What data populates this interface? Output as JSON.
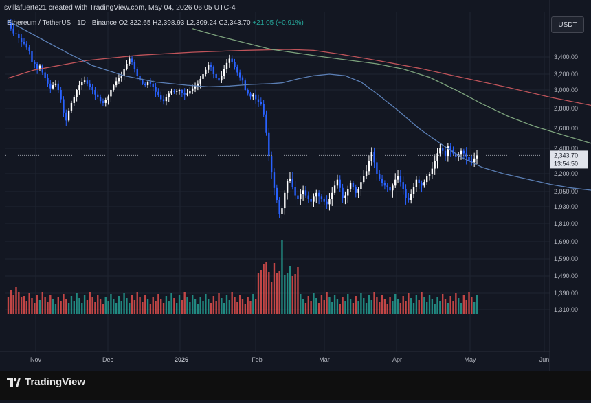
{
  "watermark_line": "svillafuerte21 created with TradingView.com, May 04, 2026 06:05 UTC-4",
  "legend": {
    "symbol": "Ethereum / TetherUS · 1D · Binance",
    "open": "O2,322.65",
    "high": "H2,398.93",
    "low": "L2,309.24",
    "close": "C2,343.70",
    "change": "+21.05 (+0.91%)"
  },
  "currency_button": "USDT",
  "brand": "TradingView",
  "colors": {
    "background": "#131722",
    "up": "#ffffff",
    "down": "#2962ff",
    "vol_up": "#26a69a",
    "vol_down": "#ef5350",
    "ma_fast": "#5b7fb5",
    "ma_mid": "#7da37d",
    "ma_slow": "#c0545a"
  },
  "chart_data": {
    "type": "candlestick",
    "price_axis_ticks": [
      "3,400.00",
      "3,200.00",
      "3,000.00",
      "2,800.00",
      "2,600.00",
      "2,400.00",
      "2,200.00",
      "2,050.00",
      "1,930.00",
      "1,810.00",
      "1,690.00",
      "1,590.00",
      "1,490.00",
      "1,390.00",
      "1,310.00"
    ],
    "time_axis_labels": [
      "Nov",
      "Dec",
      "2026",
      "Feb",
      "Mar",
      "Apr",
      "May",
      "Jun"
    ],
    "last_price_label": "2,343.70",
    "countdown_label": "13:54:50",
    "closes": [
      3760,
      3700,
      3650,
      3640,
      3600,
      3560,
      3540,
      3500,
      3460,
      3340,
      3320,
      3260,
      3300,
      3220,
      3150,
      3080,
      3020,
      3060,
      3080,
      3000,
      2900,
      2760,
      2680,
      2780,
      2860,
      2920,
      3000,
      3060,
      3100,
      3120,
      3080,
      3040,
      3000,
      2950,
      2920,
      2880,
      2860,
      2890,
      2930,
      3000,
      3060,
      3110,
      3150,
      3180,
      3260,
      3320,
      3380,
      3340,
      3260,
      3180,
      3120,
      3080,
      3060,
      3100,
      3080,
      3040,
      2980,
      2940,
      2900,
      2880,
      2920,
      2960,
      2990,
      2980,
      2990,
      3000,
      2970,
      2950,
      2960,
      2990,
      3020,
      3050,
      3080,
      3140,
      3200,
      3250,
      3310,
      3280,
      3200,
      3150,
      3120,
      3180,
      3260,
      3330,
      3380,
      3340,
      3280,
      3220,
      3160,
      3120,
      3000,
      2960,
      2930,
      2950,
      2900,
      2870,
      2850,
      2740,
      2560,
      2340,
      2210,
      2080,
      1980,
      1880,
      1920,
      2040,
      2140,
      2160,
      2090,
      2020,
      1990,
      2030,
      2060,
      2020,
      1990,
      1970,
      2010,
      2040,
      2010,
      1990,
      1970,
      1950,
      1990,
      2040,
      2100,
      2150,
      2080,
      2000,
      2020,
      2070,
      2120,
      2090,
      2040,
      2070,
      2130,
      2180,
      2220,
      2300,
      2370,
      2290,
      2200,
      2160,
      2120,
      2100,
      2090,
      2060,
      2100,
      2150,
      2180,
      2130,
      2070,
      2000,
      1980,
      2030,
      2090,
      2150,
      2120,
      2100,
      2130,
      2180,
      2200,
      2240,
      2300,
      2360,
      2400,
      2380,
      2340,
      2420,
      2390,
      2360,
      2330,
      2350,
      2380,
      2360,
      2330,
      2300,
      2290,
      2320,
      2343.7
    ],
    "moving_averages": {
      "ma_fast": [
        [
          3780,
          0
        ],
        [
          3720,
          4
        ],
        [
          3600,
          12
        ],
        [
          3450,
          22
        ],
        [
          3300,
          32
        ],
        [
          3180,
          44
        ],
        [
          3100,
          56
        ],
        [
          3060,
          68
        ],
        [
          3040,
          76
        ],
        [
          3050,
          84
        ],
        [
          3070,
          92
        ],
        [
          3080,
          100
        ],
        [
          3090,
          104
        ],
        [
          3140,
          110
        ],
        [
          3180,
          116
        ],
        [
          3200,
          122
        ],
        [
          3180,
          128
        ],
        [
          3100,
          134
        ],
        [
          2960,
          140
        ],
        [
          2780,
          148
        ],
        [
          2600,
          156
        ],
        [
          2450,
          164
        ],
        [
          2330,
          172
        ],
        [
          2250,
          180
        ],
        [
          2200,
          188
        ],
        [
          2160,
          196
        ],
        [
          2110,
          206
        ],
        [
          2080,
          214
        ],
        [
          2060,
          222
        ],
        [
          2080,
          230
        ],
        [
          2110,
          238
        ],
        [
          2140,
          246
        ],
        [
          2170,
          254
        ],
        [
          2200,
          262
        ],
        [
          2220,
          268
        ]
      ],
      "ma_mid": [
        [
          3700,
          70
        ],
        [
          3620,
          80
        ],
        [
          3550,
          90
        ],
        [
          3480,
          100
        ],
        [
          3440,
          110
        ],
        [
          3400,
          120
        ],
        [
          3360,
          130
        ],
        [
          3320,
          140
        ],
        [
          3260,
          150
        ],
        [
          3160,
          160
        ],
        [
          3000,
          170
        ],
        [
          2850,
          180
        ],
        [
          2720,
          190
        ],
        [
          2620,
          200
        ],
        [
          2540,
          210
        ],
        [
          2460,
          220
        ],
        [
          2390,
          230
        ],
        [
          2330,
          240
        ],
        [
          2290,
          250
        ],
        [
          2250,
          260
        ],
        [
          2200,
          268
        ]
      ],
      "ma_slow": [
        [
          3150,
          0
        ],
        [
          3250,
          10
        ],
        [
          3360,
          30
        ],
        [
          3420,
          50
        ],
        [
          3450,
          70
        ],
        [
          3470,
          90
        ],
        [
          3480,
          106
        ],
        [
          3470,
          116
        ],
        [
          3430,
          126
        ],
        [
          3360,
          140
        ],
        [
          3270,
          156
        ],
        [
          3160,
          172
        ],
        [
          3030,
          190
        ],
        [
          2920,
          206
        ],
        [
          2830,
          222
        ],
        [
          2750,
          236
        ],
        [
          2700,
          248
        ],
        [
          2660,
          258
        ],
        [
          2620,
          268
        ]
      ]
    }
  }
}
